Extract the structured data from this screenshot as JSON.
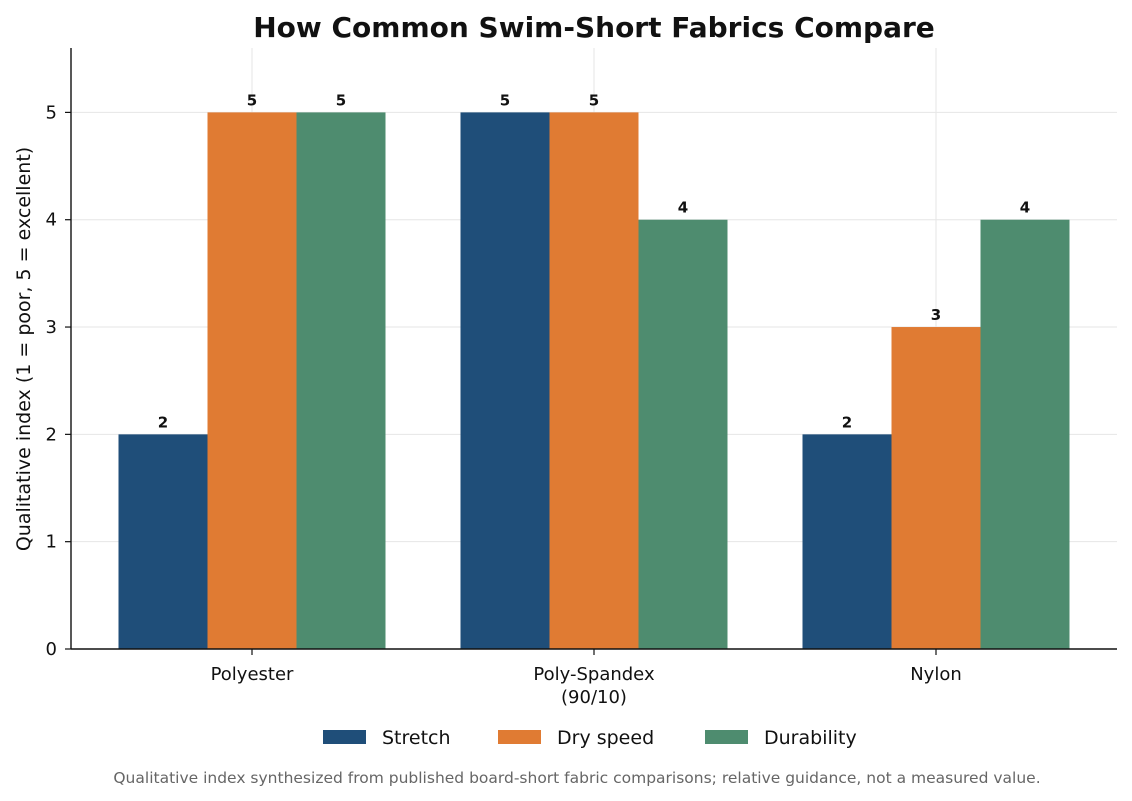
{
  "chart_data": {
    "type": "bar",
    "title": "How Common Swim-Short Fabrics Compare",
    "xlabel": "",
    "ylabel": "Qualitative index (1 = poor, 5 = excellent)",
    "categories": [
      [
        "Polyester"
      ],
      [
        "Poly-Spandex",
        "(90/10)"
      ],
      [
        "Nylon"
      ]
    ],
    "series": [
      {
        "name": "Stretch",
        "color": "#1f4e79",
        "values": [
          2,
          5,
          2
        ]
      },
      {
        "name": "Dry speed",
        "color": "#e07b33",
        "values": [
          5,
          5,
          3
        ]
      },
      {
        "name": "Durability",
        "color": "#4e8c6f",
        "values": [
          5,
          4,
          4
        ]
      }
    ],
    "ylim": [
      0,
      5.6
    ],
    "yticks": [
      0,
      1,
      2,
      3,
      4,
      5
    ],
    "grid": true,
    "legend_position": "bottom-center",
    "data_labels": true,
    "footnote": "Qualitative index synthesized from published board-short fabric comparisons; relative guidance, not a measured value."
  }
}
